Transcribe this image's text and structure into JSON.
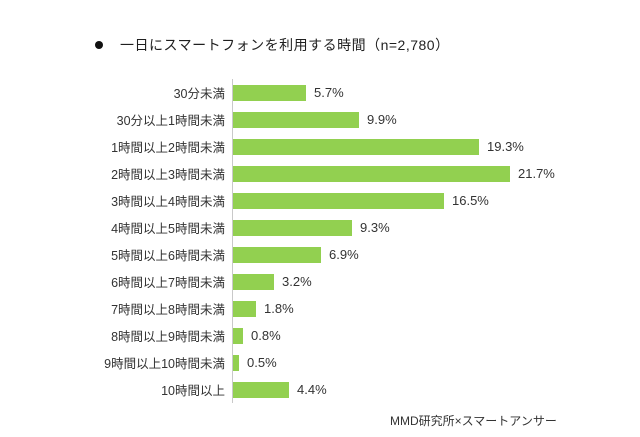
{
  "title": {
    "text": "一日にスマートフォンを利用する時間（n=2,780）"
  },
  "footer": {
    "source": "MMD研究所×スマートアンサー"
  },
  "colors": {
    "bar": "#92D050",
    "axis": "#C9C9C9",
    "text": "#333333",
    "title_text": "#1F1F1F",
    "bullet": "#111111"
  },
  "chart_data": {
    "type": "bar",
    "orientation": "horizontal",
    "title": "一日にスマートフォンを利用する時間（n=2,780）",
    "categories": [
      "30分未満",
      "30分以上1時間未満",
      "1時間以上2時間未満",
      "2時間以上3時間未満",
      "3時間以上4時間未満",
      "4時間以上5時間未満",
      "5時間以上6時間未満",
      "6時間以上7時間未満",
      "7時間以上8時間未満",
      "8時間以上9時間未満",
      "9時間以上10時間未満",
      "10時間以上"
    ],
    "values": [
      5.7,
      9.9,
      19.3,
      21.7,
      16.5,
      9.3,
      6.9,
      3.2,
      1.8,
      0.8,
      0.5,
      4.4
    ],
    "value_labels": [
      "5.7%",
      "9.9%",
      "19.3%",
      "21.7%",
      "16.5%",
      "9.3%",
      "6.9%",
      "3.2%",
      "1.8%",
      "0.8%",
      "0.5%",
      "4.4%"
    ],
    "xlabel": "",
    "ylabel": "",
    "xlim": [
      0,
      25
    ],
    "grid": false,
    "legend": false,
    "source": "MMD研究所×スマートアンサー"
  }
}
